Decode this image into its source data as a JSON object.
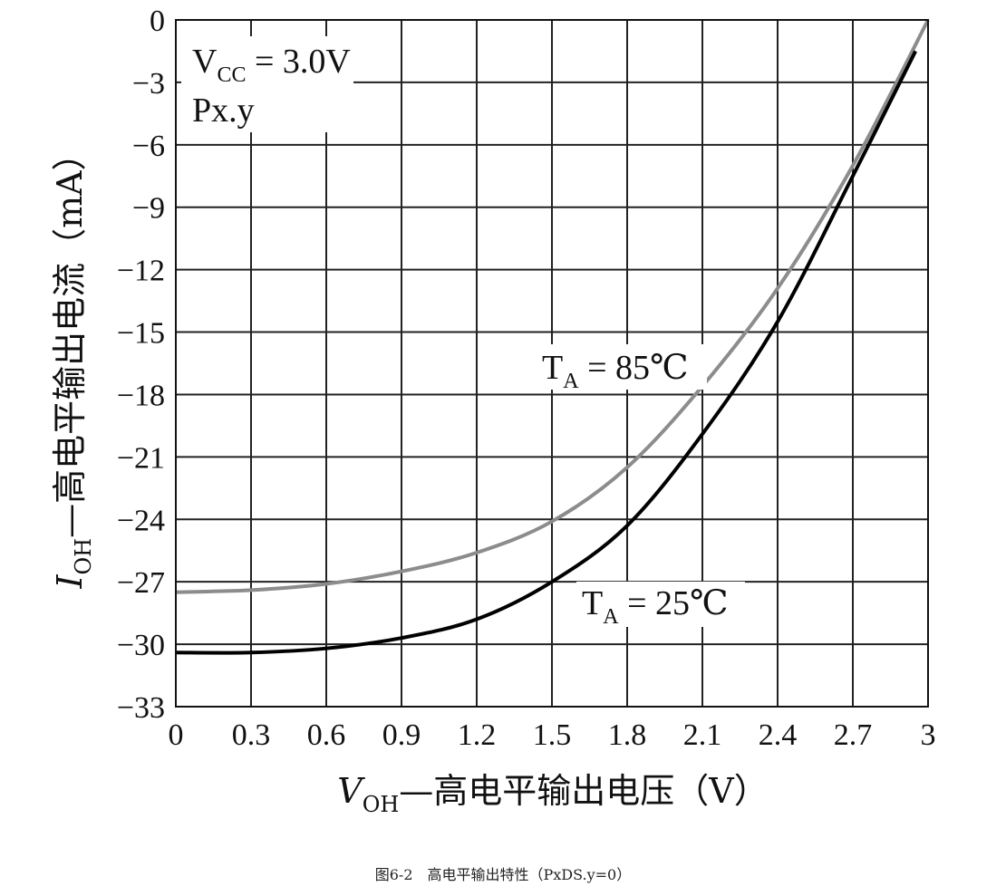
{
  "chart_data": {
    "type": "line",
    "xlabel_var": "V",
    "xlabel_sub": "OH",
    "xlabel_text": "—高电平输出电压（V）",
    "ylabel_var": "I",
    "ylabel_sub": "OH",
    "ylabel_text": "—高电平输出电流（mA）",
    "xlim": [
      0,
      3
    ],
    "ylim": [
      -33,
      0
    ],
    "xticks": [
      "0",
      "0.3",
      "0.6",
      "0.9",
      "1.2",
      "1.5",
      "1.8",
      "2.1",
      "2.4",
      "2.7",
      "3"
    ],
    "yticks": [
      "0",
      "−3",
      "−6",
      "−9",
      "−12",
      "−15",
      "−18",
      "−21",
      "−24",
      "−27",
      "−30",
      "−33"
    ],
    "grid": true,
    "annotations": {
      "vcc_main": "V",
      "vcc_sub": "CC",
      "vcc_value": " = 3.0V",
      "port": "Px.y"
    },
    "series": [
      {
        "name_main": "T",
        "name_sub": "A",
        "name_value": " = 85℃",
        "color": "#8c8c8c",
        "x": [
          0,
          0.3,
          0.6,
          0.9,
          1.2,
          1.5,
          1.8,
          2.1,
          2.4,
          2.7,
          3.0
        ],
        "y": [
          -27.5,
          -27.4,
          -27.1,
          -26.5,
          -25.6,
          -24.1,
          -21.5,
          -17.6,
          -12.9,
          -7.0,
          0.0
        ]
      },
      {
        "name_main": "T",
        "name_sub": "A",
        "name_value": " = 25℃",
        "color": "#000000",
        "x": [
          0,
          0.3,
          0.6,
          0.9,
          1.2,
          1.5,
          1.8,
          2.1,
          2.4,
          2.7,
          2.95
        ],
        "y": [
          -30.4,
          -30.4,
          -30.2,
          -29.7,
          -28.8,
          -27.0,
          -24.3,
          -19.9,
          -14.5,
          -7.5,
          -1.5
        ]
      }
    ]
  },
  "caption": "图6-2　高电平输出特性（PxDS.y=0）"
}
